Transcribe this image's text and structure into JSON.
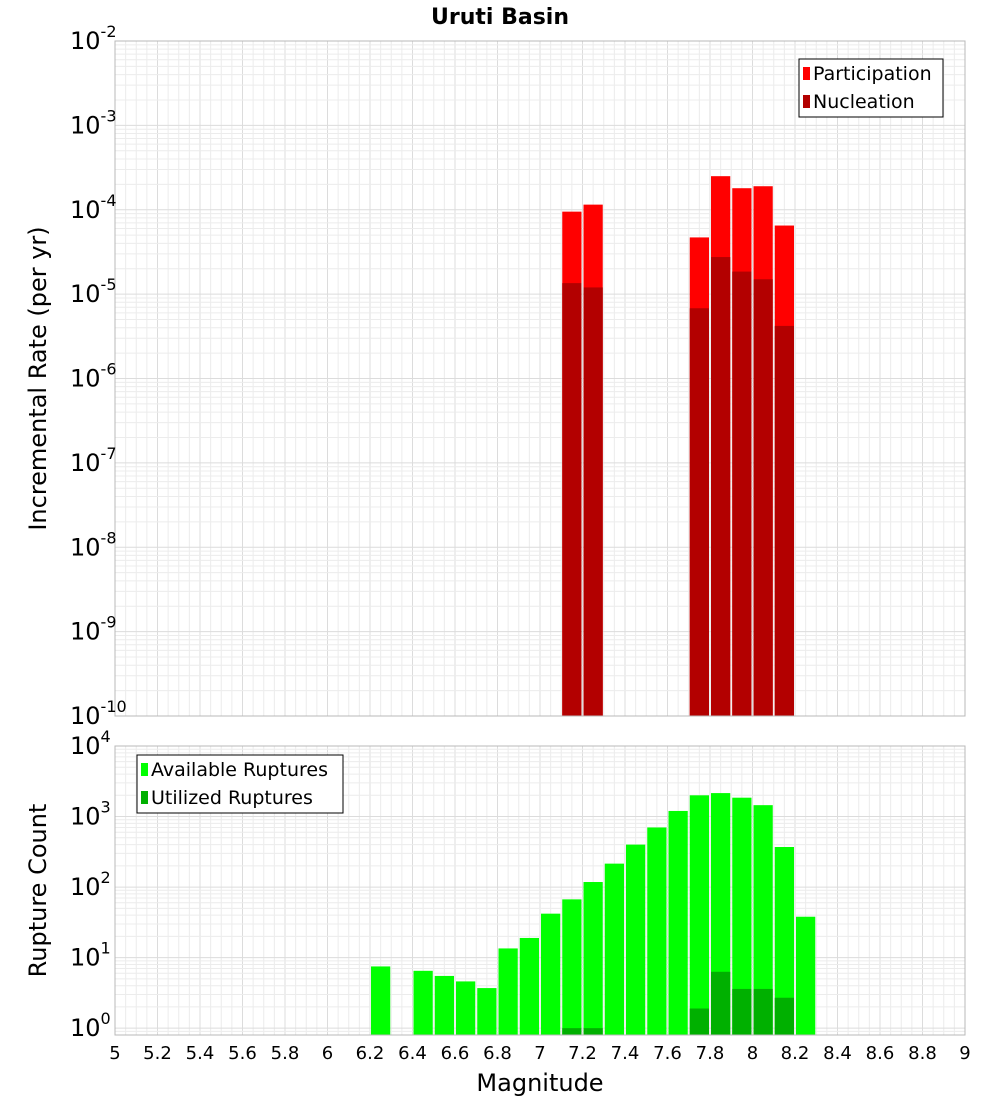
{
  "chart_data": [
    {
      "type": "bar",
      "title": "Uruti Basin",
      "ylabel": "Incremental Rate (per yr)",
      "yscale": "log",
      "ylim": [
        1e-10,
        0.01
      ],
      "xlim": [
        5,
        9
      ],
      "bar_width": 0.1,
      "legend": {
        "placement": "top-right"
      },
      "grid": true,
      "series": [
        {
          "name": "Participation",
          "color": "#ff0000",
          "x": [
            7.15,
            7.25,
            7.75,
            7.85,
            7.95,
            8.05,
            8.15
          ],
          "values": [
            9.5e-05,
            0.000115,
            4.7e-05,
            0.00025,
            0.00018,
            0.00019,
            6.5e-05
          ]
        },
        {
          "name": "Nucleation",
          "color": "#b30000",
          "x": [
            7.15,
            7.25,
            7.75,
            7.85,
            7.95,
            8.05,
            8.15
          ],
          "values": [
            1.35e-05,
            1.2e-05,
            6.8e-06,
            2.75e-05,
            1.85e-05,
            1.5e-05,
            4.2e-06
          ]
        }
      ]
    },
    {
      "type": "bar",
      "xlabel": "Magnitude",
      "ylabel": "Rupture Count",
      "yscale": "log",
      "ylim": [
        0.8,
        10000
      ],
      "xlim": [
        5,
        9
      ],
      "bar_width": 0.1,
      "legend": {
        "placement": "top-left"
      },
      "grid": true,
      "xticks": [
        "5",
        "5.2",
        "5.4",
        "5.6",
        "5.8",
        "6",
        "6.2",
        "6.4",
        "6.6",
        "6.8",
        "7",
        "7.2",
        "7.4",
        "7.6",
        "7.8",
        "8",
        "8.2",
        "8.4",
        "8.6",
        "8.8",
        "9"
      ],
      "series": [
        {
          "name": "Available Ruptures",
          "color": "#00ff00",
          "x": [
            6.25,
            6.45,
            6.55,
            6.65,
            6.75,
            6.85,
            6.95,
            7.05,
            7.15,
            7.25,
            7.35,
            7.45,
            7.55,
            7.65,
            7.75,
            7.85,
            7.95,
            8.05,
            8.15,
            8.25
          ],
          "values": [
            7.5,
            6.5,
            5.5,
            4.6,
            3.7,
            13.5,
            19,
            42,
            67,
            118,
            215,
            400,
            700,
            1200,
            2000,
            2150,
            1850,
            1450,
            370,
            38
          ]
        },
        {
          "name": "Utilized Ruptures",
          "color": "#00b000",
          "x": [
            7.15,
            7.25,
            7.75,
            7.85,
            7.95,
            8.05,
            8.15
          ],
          "values": [
            1,
            1,
            1.9,
            6.3,
            3.6,
            3.6,
            2.7
          ]
        }
      ]
    }
  ]
}
